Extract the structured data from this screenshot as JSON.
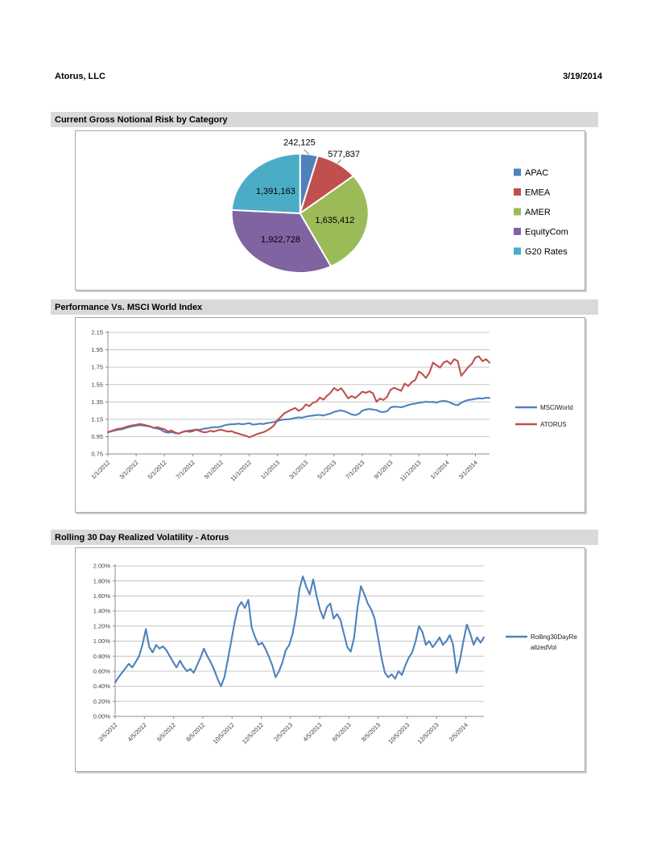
{
  "header": {
    "company": "Atorus, LLC",
    "date": "3/19/2014"
  },
  "sections": [
    {
      "title": "Current Gross Notional Risk by Category"
    },
    {
      "title": "Performance Vs. MSCI World Index"
    },
    {
      "title": "Rolling 30 Day Realized Volatility - Atorus"
    }
  ],
  "colors": {
    "palette_blue": "#4F81BD",
    "palette_red": "#C0504D",
    "palette_green": "#9BBB59",
    "palette_purple": "#8064A2",
    "palette_cyan": "#4BACC6",
    "section_bar": "#D9D9D9",
    "gridline": "#C6C6C6",
    "axis": "#8C8C8C",
    "tick_text": "#404040"
  },
  "chart_data": [
    {
      "type": "pie",
      "title": "Current Gross Notional Risk by Category",
      "categories": [
        "APAC",
        "EMEA",
        "AMER",
        "EquityCom",
        "G20 Rates"
      ],
      "values": [
        242125,
        577837,
        1635412,
        1922728,
        1391163
      ],
      "value_labels": [
        "242,125",
        "577,837",
        "1,635,412",
        "1,922,728",
        "1,391,163"
      ],
      "slice_colors": [
        "#4F81BD",
        "#C0504D",
        "#9BBB59",
        "#8064A2",
        "#4BACC6"
      ],
      "start_angle": "top",
      "direction": "clockwise",
      "legend_position": "right"
    },
    {
      "type": "line",
      "title": "Performance Vs. MSCI World Index",
      "ylim": [
        0.75,
        2.15
      ],
      "yticks": [
        0.75,
        0.95,
        1.15,
        1.35,
        1.55,
        1.75,
        1.95,
        2.15
      ],
      "ytick_labels": [
        "0.75",
        "0.95",
        "1.15",
        "1.35",
        "1.55",
        "1.75",
        "1.95",
        "2.15"
      ],
      "xtick_labels": [
        "1/1/2012",
        "3/1/2012",
        "5/1/2012",
        "7/1/2012",
        "9/1/2012",
        "11/1/2012",
        "1/1/2013",
        "3/1/2013",
        "5/1/2013",
        "7/1/2013",
        "9/1/2013",
        "11/1/2013",
        "1/1/2014",
        "3/1/2014"
      ],
      "grid": true,
      "legend_position": "right",
      "series": [
        {
          "name": "MSCIWorld",
          "color": "#4F81BD",
          "legend_lines": [
            "MSCIWorld"
          ],
          "values": [
            1.0,
            1.01,
            1.022,
            1.03,
            1.035,
            1.048,
            1.06,
            1.07,
            1.075,
            1.082,
            1.078,
            1.072,
            1.065,
            1.05,
            1.042,
            1.03,
            1.005,
            0.995,
            1.002,
            0.99,
            0.985,
            1.0,
            1.012,
            1.02,
            1.025,
            1.032,
            1.028,
            1.04,
            1.045,
            1.052,
            1.06,
            1.058,
            1.065,
            1.08,
            1.088,
            1.092,
            1.095,
            1.1,
            1.092,
            1.098,
            1.105,
            1.088,
            1.092,
            1.1,
            1.095,
            1.105,
            1.112,
            1.12,
            1.13,
            1.142,
            1.148,
            1.15,
            1.155,
            1.165,
            1.172,
            1.168,
            1.18,
            1.188,
            1.192,
            1.198,
            1.2,
            1.192,
            1.205,
            1.215,
            1.235,
            1.245,
            1.252,
            1.24,
            1.225,
            1.205,
            1.198,
            1.212,
            1.25,
            1.262,
            1.268,
            1.262,
            1.255,
            1.238,
            1.232,
            1.242,
            1.285,
            1.295,
            1.292,
            1.288,
            1.3,
            1.315,
            1.325,
            1.33,
            1.34,
            1.345,
            1.352,
            1.348,
            1.35,
            1.342,
            1.355,
            1.362,
            1.355,
            1.34,
            1.32,
            1.312,
            1.34,
            1.36,
            1.372,
            1.378,
            1.385,
            1.392,
            1.388,
            1.398,
            1.395
          ]
        },
        {
          "name": "ATORUS",
          "color": "#C0504D",
          "legend_lines": [
            "ATORUS"
          ],
          "values": [
            1.0,
            1.015,
            1.03,
            1.04,
            1.045,
            1.06,
            1.072,
            1.08,
            1.085,
            1.095,
            1.088,
            1.078,
            1.068,
            1.05,
            1.06,
            1.045,
            1.035,
            1.01,
            1.02,
            0.998,
            0.985,
            1.002,
            1.015,
            1.005,
            1.012,
            1.028,
            1.015,
            1.0,
            1.002,
            1.018,
            1.008,
            1.022,
            1.03,
            1.018,
            1.008,
            1.012,
            0.995,
            0.985,
            0.972,
            0.96,
            0.942,
            0.958,
            0.975,
            0.99,
            1.0,
            1.02,
            1.045,
            1.08,
            1.14,
            1.18,
            1.22,
            1.24,
            1.262,
            1.28,
            1.248,
            1.268,
            1.32,
            1.302,
            1.34,
            1.352,
            1.4,
            1.375,
            1.42,
            1.455,
            1.51,
            1.48,
            1.508,
            1.452,
            1.39,
            1.418,
            1.395,
            1.43,
            1.468,
            1.455,
            1.472,
            1.448,
            1.352,
            1.388,
            1.372,
            1.408,
            1.49,
            1.512,
            1.495,
            1.478,
            1.56,
            1.532,
            1.578,
            1.602,
            1.7,
            1.672,
            1.625,
            1.688,
            1.802,
            1.772,
            1.745,
            1.802,
            1.822,
            1.785,
            1.842,
            1.82,
            1.65,
            1.7,
            1.752,
            1.788,
            1.862,
            1.875,
            1.818,
            1.842,
            1.802
          ]
        }
      ]
    },
    {
      "type": "line",
      "title": "Rolling 30 Day Realized Volatility - Atorus",
      "ylim": [
        0.0,
        2.0
      ],
      "yticks": [
        0.0,
        0.2,
        0.4,
        0.6,
        0.8,
        1.0,
        1.2,
        1.4,
        1.6,
        1.8,
        2.0
      ],
      "ytick_labels": [
        "0.00%",
        "0.20%",
        "0.40%",
        "0.60%",
        "0.80%",
        "1.00%",
        "1.20%",
        "1.40%",
        "1.60%",
        "1.80%",
        "2.00%"
      ],
      "xtick_labels": [
        "2/5/2012",
        "4/5/2012",
        "6/5/2012",
        "8/5/2012",
        "10/5/2012",
        "12/5/2012",
        "2/5/2013",
        "4/5/2013",
        "6/5/2013",
        "8/5/2013",
        "10/5/2013",
        "12/5/2013",
        "2/5/2014"
      ],
      "grid": true,
      "legend_position": "right",
      "series": [
        {
          "name": "Rolling30DayRealizedVol",
          "color": "#4F81BD",
          "legend_lines": [
            "Rolling30DayRe",
            "alizedVol"
          ],
          "values": [
            0.45,
            0.52,
            0.58,
            0.64,
            0.7,
            0.65,
            0.72,
            0.8,
            0.95,
            1.16,
            0.92,
            0.85,
            0.95,
            0.9,
            0.93,
            0.88,
            0.8,
            0.72,
            0.65,
            0.74,
            0.66,
            0.6,
            0.63,
            0.58,
            0.68,
            0.78,
            0.9,
            0.8,
            0.72,
            0.62,
            0.5,
            0.4,
            0.52,
            0.75,
            1.0,
            1.25,
            1.45,
            1.52,
            1.44,
            1.55,
            1.18,
            1.05,
            0.95,
            0.98,
            0.9,
            0.8,
            0.68,
            0.52,
            0.6,
            0.72,
            0.88,
            0.95,
            1.1,
            1.35,
            1.7,
            1.86,
            1.72,
            1.62,
            1.82,
            1.6,
            1.42,
            1.3,
            1.45,
            1.5,
            1.3,
            1.36,
            1.28,
            1.1,
            0.92,
            0.86,
            1.05,
            1.45,
            1.73,
            1.62,
            1.5,
            1.42,
            1.3,
            1.05,
            0.78,
            0.58,
            0.52,
            0.56,
            0.5,
            0.6,
            0.55,
            0.68,
            0.78,
            0.85,
            1.0,
            1.2,
            1.12,
            0.95,
            1.0,
            0.92,
            0.98,
            1.05,
            0.95,
            1.0,
            1.08,
            0.95,
            0.58,
            0.75,
            1.0,
            1.22,
            1.1,
            0.95,
            1.05,
            0.98,
            1.05
          ]
        }
      ]
    }
  ]
}
